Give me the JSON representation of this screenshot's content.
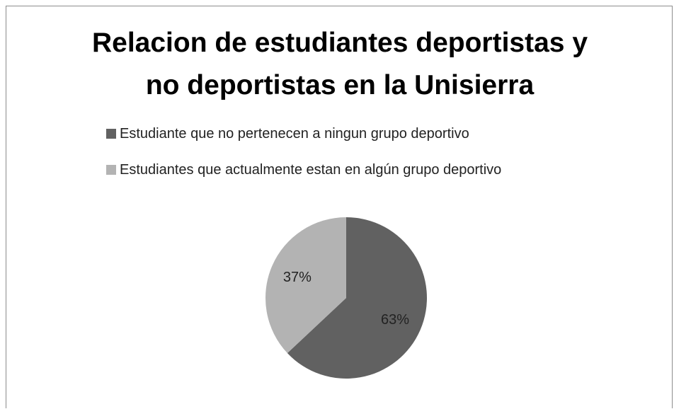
{
  "chart_data": {
    "type": "pie",
    "title": "Relacion de estudiantes deportistas y no deportistas en la Unisierra",
    "title_lines": [
      "Relacion de estudiantes deportistas y",
      "no deportistas en la Unisierra"
    ],
    "categories": [
      "Estudiante que no pertenecen a ningun grupo deportivo",
      "Estudiantes que actualmente estan en algún grupo deportivo"
    ],
    "values": [
      63,
      37
    ],
    "data_labels": [
      "63%",
      "37%"
    ],
    "colors": [
      "#616161",
      "#b3b3b3"
    ],
    "legend_position": "top"
  }
}
